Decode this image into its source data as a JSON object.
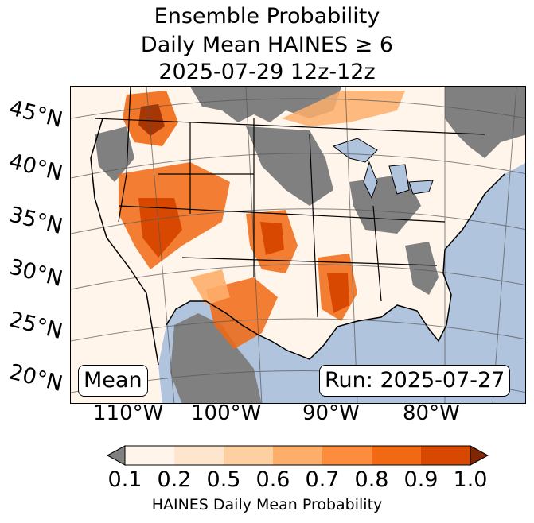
{
  "title": {
    "line1": "Ensemble Probability",
    "line2": "Daily Mean HAINES ≥ 6",
    "line3": "2025-07-29 12z-12z"
  },
  "map": {
    "lat_labels": [
      "45°N",
      "40°N",
      "35°N",
      "30°N",
      "25°N",
      "20°N"
    ],
    "lon_labels": [
      "110°W",
      "100°W",
      "90°W",
      "80°W"
    ],
    "stat_label": "Mean",
    "run_label": "Run: 2025-07-27",
    "colors": {
      "ocean": "#b0c4de",
      "no_data": "#808080"
    }
  },
  "colorbar": {
    "ticks": [
      "0.1",
      "0.2",
      "0.5",
      "0.6",
      "0.7",
      "0.8",
      "0.9",
      "1.0"
    ],
    "label": "HAINES Daily Mean Probability",
    "colors": [
      "#fff5eb",
      "#fee6ce",
      "#fdd0a2",
      "#fdae6b",
      "#fd8d3c",
      "#f16913",
      "#d94801",
      "#a63603"
    ],
    "under_color": "#808080",
    "over_color": "#7f2704"
  }
}
